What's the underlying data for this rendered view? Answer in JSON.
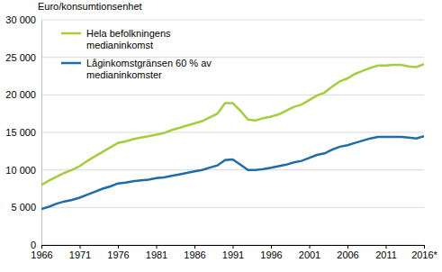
{
  "chart_data": {
    "type": "line",
    "y_label": "Euro/konsumtionsenhet",
    "x": [
      1966,
      1967,
      1968,
      1969,
      1970,
      1971,
      1972,
      1973,
      1974,
      1975,
      1976,
      1977,
      1978,
      1979,
      1980,
      1981,
      1982,
      1983,
      1984,
      1985,
      1986,
      1987,
      1988,
      1989,
      1990,
      1991,
      1992,
      1993,
      1994,
      1995,
      1996,
      1997,
      1998,
      1999,
      2000,
      2001,
      2002,
      2003,
      2004,
      2005,
      2006,
      2007,
      2008,
      2009,
      2010,
      2011,
      2012,
      2013,
      2014,
      2015,
      2016
    ],
    "series": [
      {
        "name": "Hela befolkningens medianinkomst",
        "color": "#a5cd3d",
        "values": [
          8000,
          8600,
          9100,
          9600,
          10000,
          10500,
          11200,
          11800,
          12400,
          13000,
          13600,
          13800,
          14100,
          14300,
          14500,
          14700,
          14900,
          15300,
          15600,
          15900,
          16200,
          16500,
          17000,
          17500,
          18900,
          18900,
          17900,
          16700,
          16600,
          16900,
          17100,
          17400,
          17900,
          18400,
          18700,
          19300,
          19900,
          20300,
          21100,
          21800,
          22200,
          22800,
          23200,
          23600,
          23900,
          23900,
          24000,
          24000,
          23800,
          23700,
          24100
        ]
      },
      {
        "name": "Låginkomstgränsen 60 % av medianinkomster",
        "color": "#1e6ca8",
        "values": [
          4800,
          5100,
          5500,
          5800,
          6000,
          6300,
          6700,
          7100,
          7500,
          7800,
          8200,
          8300,
          8500,
          8600,
          8700,
          8900,
          9000,
          9200,
          9400,
          9600,
          9800,
          10000,
          10300,
          10600,
          11300,
          11400,
          10700,
          10000,
          10000,
          10100,
          10300,
          10500,
          10700,
          11000,
          11200,
          11600,
          12000,
          12200,
          12700,
          13100,
          13300,
          13600,
          13900,
          14200,
          14400,
          14400,
          14400,
          14400,
          14300,
          14200,
          14500
        ]
      }
    ],
    "xlim": [
      1966,
      2016
    ],
    "xticks": [
      1966,
      1971,
      1976,
      1981,
      1986,
      1991,
      1996,
      2001,
      2006,
      2011,
      {
        "value": 2016,
        "label": "2016*"
      }
    ],
    "ylim": [
      0,
      30000
    ],
    "yticks": [
      0,
      {
        "value": 5000,
        "label": "5 000"
      },
      {
        "value": 10000,
        "label": "10 000"
      },
      {
        "value": 15000,
        "label": "15 000"
      },
      {
        "value": 20000,
        "label": "20 000"
      },
      {
        "value": 25000,
        "label": "25 000"
      },
      {
        "value": 30000,
        "label": "30 000"
      }
    ],
    "grid": true,
    "legend": "upper left"
  }
}
